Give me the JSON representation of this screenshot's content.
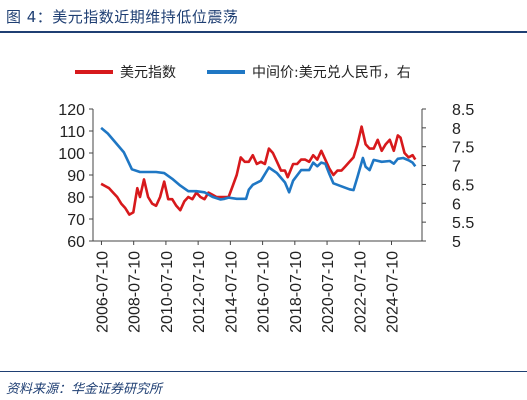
{
  "figure": {
    "title": "图 4：美元指数近期维持低位震荡",
    "source": "资料来源：华金证券研究所"
  },
  "chart_data": {
    "type": "line",
    "legend_position": "top",
    "grid": false,
    "y_left": {
      "lim": [
        60,
        120
      ],
      "ticks": [
        "60",
        "70",
        "80",
        "90",
        "100",
        "110",
        "120"
      ]
    },
    "y_right": {
      "lim": [
        5,
        8.5
      ],
      "ticks": [
        "5",
        "5.5",
        "6",
        "6.5",
        "7",
        "7.5",
        "8",
        "8.5"
      ]
    },
    "x": {
      "lim": [
        "2006-01",
        "2026-06"
      ],
      "ticks": [
        "2006-07-10",
        "2008-07-10",
        "2010-07-10",
        "2012-07-10",
        "2014-07-10",
        "2016-07-10",
        "2018-07-10",
        "2020-07-10",
        "2022-07-10",
        "2024-07-10"
      ]
    },
    "series": [
      {
        "name": "美元指数",
        "axis": "left",
        "color": "#d7191c",
        "points": [
          [
            "2006-07",
            86
          ],
          [
            "2006-10",
            85
          ],
          [
            "2007-01",
            84
          ],
          [
            "2007-04",
            82
          ],
          [
            "2007-07",
            80
          ],
          [
            "2007-10",
            77
          ],
          [
            "2008-01",
            75
          ],
          [
            "2008-04",
            72
          ],
          [
            "2008-07",
            73
          ],
          [
            "2008-10",
            84
          ],
          [
            "2008-12",
            80
          ],
          [
            "2009-03",
            88
          ],
          [
            "2009-06",
            80
          ],
          [
            "2009-09",
            77
          ],
          [
            "2009-12",
            76
          ],
          [
            "2010-03",
            80
          ],
          [
            "2010-06",
            87
          ],
          [
            "2010-09",
            79
          ],
          [
            "2010-12",
            79
          ],
          [
            "2011-03",
            76
          ],
          [
            "2011-06",
            74
          ],
          [
            "2011-09",
            78
          ],
          [
            "2011-12",
            80
          ],
          [
            "2012-03",
            79
          ],
          [
            "2012-06",
            82
          ],
          [
            "2012-09",
            80
          ],
          [
            "2012-12",
            79
          ],
          [
            "2013-03",
            82
          ],
          [
            "2013-06",
            81
          ],
          [
            "2013-09",
            80
          ],
          [
            "2013-12",
            80
          ],
          [
            "2014-03",
            80
          ],
          [
            "2014-06",
            80
          ],
          [
            "2014-09",
            85
          ],
          [
            "2014-12",
            90
          ],
          [
            "2015-03",
            98
          ],
          [
            "2015-06",
            96
          ],
          [
            "2015-09",
            96
          ],
          [
            "2015-12",
            99
          ],
          [
            "2016-03",
            95
          ],
          [
            "2016-06",
            96
          ],
          [
            "2016-09",
            95
          ],
          [
            "2016-12",
            102
          ],
          [
            "2017-03",
            100
          ],
          [
            "2017-06",
            96
          ],
          [
            "2017-09",
            92
          ],
          [
            "2017-12",
            92
          ],
          [
            "2018-02",
            89
          ],
          [
            "2018-06",
            95
          ],
          [
            "2018-09",
            95
          ],
          [
            "2018-12",
            97
          ],
          [
            "2019-03",
            97
          ],
          [
            "2019-06",
            96
          ],
          [
            "2019-09",
            99
          ],
          [
            "2019-12",
            97
          ],
          [
            "2020-03",
            101
          ],
          [
            "2020-06",
            97
          ],
          [
            "2020-09",
            93
          ],
          [
            "2020-12",
            90
          ],
          [
            "2021-03",
            92
          ],
          [
            "2021-06",
            92
          ],
          [
            "2021-09",
            94
          ],
          [
            "2021-12",
            96
          ],
          [
            "2022-03",
            98
          ],
          [
            "2022-06",
            104
          ],
          [
            "2022-09",
            112
          ],
          [
            "2022-12",
            104
          ],
          [
            "2023-03",
            102
          ],
          [
            "2023-06",
            102
          ],
          [
            "2023-09",
            106
          ],
          [
            "2023-12",
            101
          ],
          [
            "2024-03",
            104
          ],
          [
            "2024-06",
            106
          ],
          [
            "2024-09",
            101
          ],
          [
            "2024-12",
            108
          ],
          [
            "2025-02",
            107
          ],
          [
            "2025-05",
            100
          ],
          [
            "2025-08",
            98
          ],
          [
            "2025-11",
            99
          ],
          [
            "2026-01",
            97
          ]
        ]
      },
      {
        "name": "中间价:美元兑人民币，右",
        "axis": "right",
        "color": "#1f77c4",
        "points": [
          [
            "2006-07",
            8.0
          ],
          [
            "2006-12",
            7.85
          ],
          [
            "2007-06",
            7.6
          ],
          [
            "2007-12",
            7.35
          ],
          [
            "2008-06",
            6.9
          ],
          [
            "2008-12",
            6.83
          ],
          [
            "2009-06",
            6.83
          ],
          [
            "2009-12",
            6.83
          ],
          [
            "2010-06",
            6.8
          ],
          [
            "2010-12",
            6.65
          ],
          [
            "2011-06",
            6.47
          ],
          [
            "2011-12",
            6.32
          ],
          [
            "2012-06",
            6.32
          ],
          [
            "2012-12",
            6.29
          ],
          [
            "2013-06",
            6.17
          ],
          [
            "2013-12",
            6.1
          ],
          [
            "2014-03",
            6.12
          ],
          [
            "2014-06",
            6.15
          ],
          [
            "2014-12",
            6.12
          ],
          [
            "2015-07",
            6.12
          ],
          [
            "2015-09",
            6.36
          ],
          [
            "2015-12",
            6.49
          ],
          [
            "2016-06",
            6.6
          ],
          [
            "2016-12",
            6.95
          ],
          [
            "2017-06",
            6.8
          ],
          [
            "2017-12",
            6.55
          ],
          [
            "2018-03",
            6.29
          ],
          [
            "2018-06",
            6.6
          ],
          [
            "2018-12",
            6.88
          ],
          [
            "2019-06",
            6.88
          ],
          [
            "2019-09",
            7.08
          ],
          [
            "2019-12",
            6.98
          ],
          [
            "2020-03",
            7.08
          ],
          [
            "2020-06",
            7.05
          ],
          [
            "2020-09",
            6.78
          ],
          [
            "2020-12",
            6.53
          ],
          [
            "2021-06",
            6.45
          ],
          [
            "2021-12",
            6.37
          ],
          [
            "2022-03",
            6.35
          ],
          [
            "2022-06",
            6.7
          ],
          [
            "2022-10",
            7.2
          ],
          [
            "2022-12",
            6.97
          ],
          [
            "2023-03",
            6.88
          ],
          [
            "2023-06",
            7.15
          ],
          [
            "2023-12",
            7.1
          ],
          [
            "2024-06",
            7.12
          ],
          [
            "2024-09",
            7.05
          ],
          [
            "2024-12",
            7.18
          ],
          [
            "2025-04",
            7.2
          ],
          [
            "2025-08",
            7.14
          ],
          [
            "2025-11",
            7.08
          ],
          [
            "2026-01",
            6.98
          ]
        ]
      }
    ]
  }
}
